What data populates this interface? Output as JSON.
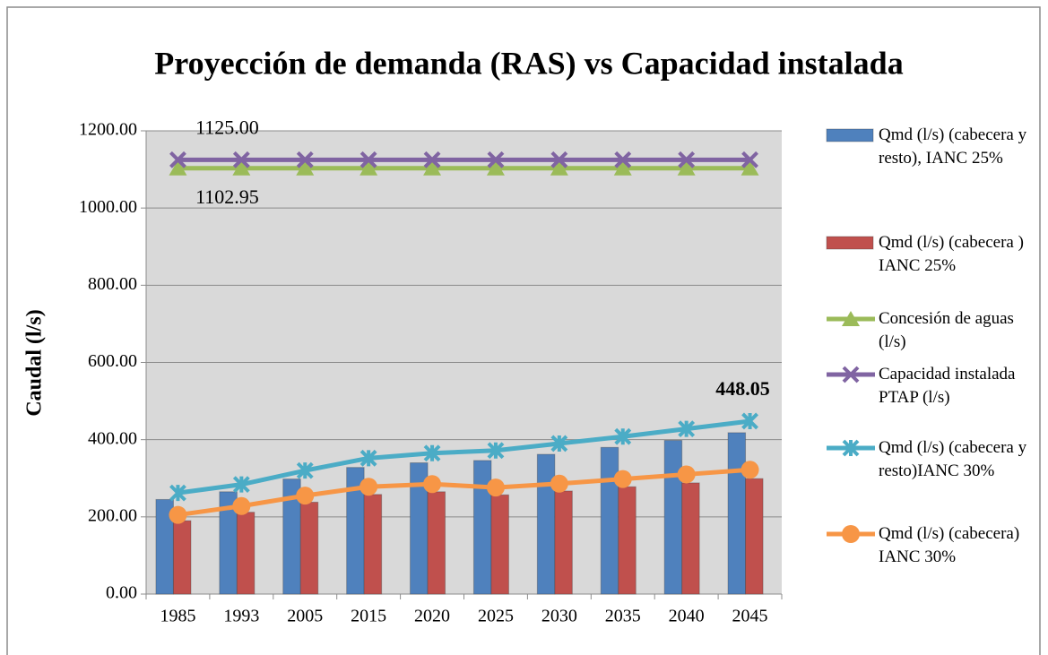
{
  "chart_data": {
    "type": "combo",
    "title": "Proyección de demanda (RAS) vs Capacidad instalada",
    "ylabel": "Caudal (l/s)",
    "categories": [
      "1985",
      "1993",
      "2005",
      "2015",
      "2020",
      "2025",
      "2030",
      "2035",
      "2040",
      "2045"
    ],
    "ylim": [
      0,
      1200
    ],
    "yticks": [
      {
        "value": 0,
        "label": "0.00"
      },
      {
        "value": 200,
        "label": "200.00"
      },
      {
        "value": 400,
        "label": "400.00"
      },
      {
        "value": 600,
        "label": "600.00"
      },
      {
        "value": 800,
        "label": "800.00"
      },
      {
        "value": 1000,
        "label": "1000.00"
      },
      {
        "value": 1200,
        "label": "1200.00"
      }
    ],
    "grid": true,
    "legend": "right",
    "series": [
      {
        "name": "Qmd (l/s) (cabecera y resto), IANC 25%",
        "kind": "bar",
        "color": "#4f81bd",
        "values": [
          245,
          265,
          298,
          328,
          340,
          346,
          362,
          380,
          398,
          418
        ]
      },
      {
        "name": "Qmd (l/s) (cabecera ) IANC 25%",
        "kind": "bar",
        "color": "#c0504d",
        "values": [
          190,
          212,
          238,
          258,
          265,
          257,
          267,
          278,
          288,
          299
        ]
      },
      {
        "name": "Concesión de aguas (l/s)",
        "kind": "line",
        "marker": "triangle",
        "color": "#9bbb59",
        "values": [
          1102.95,
          1102.95,
          1102.95,
          1102.95,
          1102.95,
          1102.95,
          1102.95,
          1102.95,
          1102.95,
          1102.95
        ],
        "value_labels": [
          "1102.95",
          null,
          null,
          null,
          null,
          null,
          null,
          null,
          null,
          null
        ],
        "label_position": "below"
      },
      {
        "name": "Capacidad instalada PTAP (l/s)",
        "kind": "line",
        "marker": "x",
        "color": "#8064a2",
        "values": [
          1125,
          1125,
          1125,
          1125,
          1125,
          1125,
          1125,
          1125,
          1125,
          1125
        ],
        "value_labels": [
          "1125.00",
          null,
          null,
          null,
          null,
          null,
          null,
          null,
          null,
          null
        ],
        "label_position": "above"
      },
      {
        "name": "Qmd (l/s) (cabecera y resto)IANC 30%",
        "kind": "line",
        "marker": "star",
        "color": "#4bacc6",
        "values": [
          262,
          284,
          320,
          352,
          365,
          372,
          390,
          408,
          428,
          448.05
        ],
        "value_labels": [
          null,
          null,
          null,
          null,
          null,
          null,
          null,
          null,
          null,
          "448.05"
        ],
        "label_position": "above",
        "label_bold": true
      },
      {
        "name": "Qmd (l/s) (cabecera) IANC 30%",
        "kind": "line",
        "marker": "circle",
        "color": "#f79646",
        "values": [
          205,
          228,
          255,
          278,
          285,
          276,
          286,
          298,
          310,
          322
        ]
      }
    ]
  }
}
